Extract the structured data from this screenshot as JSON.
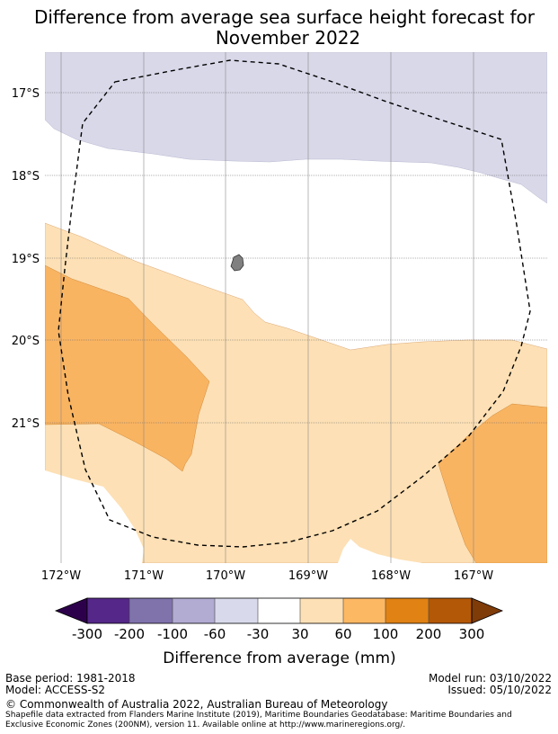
{
  "title": {
    "line1": "Difference from average sea surface height forecast for",
    "line2": "November 2022"
  },
  "map": {
    "latitude_labels": [
      "17°S",
      "18°S",
      "19°S",
      "20°S",
      "21°S"
    ],
    "longitude_labels": [
      "172°W",
      "171°W",
      "170°W",
      "169°W",
      "168°W",
      "167°W"
    ],
    "colors": {
      "negative_30_60": "#d8d8e9",
      "neutral": "#ffffff",
      "positive_30_60": "#fde0b5",
      "positive_60_100": "#f9b462",
      "island": "#808080",
      "eez_boundary": "#000000"
    }
  },
  "colorbar": {
    "label": "Difference from average (mm)",
    "ticks": [
      "-300",
      "-200",
      "-100",
      "-60",
      "-30",
      "30",
      "60",
      "100",
      "200",
      "300"
    ],
    "under_color": "#2d004b",
    "over_color": "#7f3b08",
    "bin_colors": [
      "#542788",
      "#8073ac",
      "#b2abd2",
      "#d8daeb",
      "#ffffff",
      "#fee0b6",
      "#fdb863",
      "#e08214",
      "#b35806"
    ]
  },
  "footer": {
    "base_period": "Base period: 1981-2018",
    "model": "Model: ACCESS-S2",
    "model_run": "Model run: 03/10/2022",
    "issued": "Issued: 05/10/2022",
    "copyright": "© Commonwealth of Australia 2022, Australian Bureau of Meteorology",
    "shapefile_line1": "Shapefile data extracted from Flanders Marine Institute (2019), Maritime Boundaries Geodatabase: Maritime Boundaries and",
    "shapefile_line2": "Exclusive Economic Zones (200NM), version 11. Available online at http://www.marineregions.org/."
  }
}
